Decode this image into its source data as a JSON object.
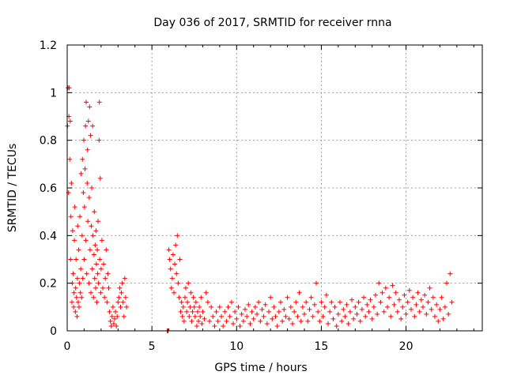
{
  "chart_data": {
    "type": "scatter",
    "title": "Day 036 of 2017, SRMTID for receiver rnna",
    "xlabel": "GPS time / hours",
    "ylabel": "SRMTID / TECUs",
    "xlim": [
      0,
      24.5
    ],
    "ylim": [
      0,
      1.2
    ],
    "x_ticks": [
      0,
      5,
      10,
      15,
      20
    ],
    "x_tick_labels": [
      "0",
      "5",
      "10",
      "15",
      "20"
    ],
    "y_ticks": [
      0,
      0.2,
      0.4,
      0.6,
      0.8,
      1.0,
      1.2
    ],
    "y_tick_labels": [
      "0",
      "0.2",
      "0.4",
      "0.6",
      "0.8",
      "1",
      "1.2"
    ],
    "grid": true,
    "marker": "plus",
    "color": "#ff0000",
    "series": [
      {
        "name": "SRMTID",
        "points": [
          [
            0.02,
            0.86
          ],
          [
            0.05,
            1.02
          ],
          [
            0.08,
            0.58
          ],
          [
            0.1,
            0.9
          ],
          [
            0.12,
            1.02
          ],
          [
            0.15,
            0.72
          ],
          [
            0.18,
            0.88
          ],
          [
            0.2,
            0.3
          ],
          [
            0.22,
            0.48
          ],
          [
            0.25,
            0.62
          ],
          [
            0.28,
            0.12
          ],
          [
            0.3,
            0.2
          ],
          [
            0.32,
            0.42
          ],
          [
            0.35,
            0.24
          ],
          [
            0.38,
            0.1
          ],
          [
            0.4,
            0.16
          ],
          [
            0.42,
            0.38
          ],
          [
            0.45,
            0.52
          ],
          [
            0.48,
            0.08
          ],
          [
            0.5,
            0.18
          ],
          [
            0.52,
            0.3
          ],
          [
            0.55,
            0.14
          ],
          [
            0.58,
            0.06
          ],
          [
            0.6,
            0.22
          ],
          [
            0.62,
            0.44
          ],
          [
            0.65,
            0.12
          ],
          [
            0.68,
            0.34
          ],
          [
            0.7,
            0.1
          ],
          [
            0.72,
            0.2
          ],
          [
            0.75,
            0.48
          ],
          [
            0.78,
            0.16
          ],
          [
            0.8,
            0.26
          ],
          [
            0.82,
            0.66
          ],
          [
            0.85,
            0.14
          ],
          [
            0.88,
            0.4
          ],
          [
            0.9,
            0.72
          ],
          [
            0.92,
            0.22
          ],
          [
            0.95,
            0.58
          ],
          [
            0.98,
            0.8
          ],
          [
            1.0,
            0.3
          ],
          [
            1.02,
            0.52
          ],
          [
            1.05,
            0.68
          ],
          [
            1.08,
            0.86
          ],
          [
            1.1,
            0.38
          ],
          [
            1.12,
            0.96
          ],
          [
            1.15,
            0.24
          ],
          [
            1.18,
            0.62
          ],
          [
            1.2,
            0.76
          ],
          [
            1.22,
            0.46
          ],
          [
            1.25,
            0.88
          ],
          [
            1.28,
            0.2
          ],
          [
            1.3,
            0.56
          ],
          [
            1.32,
            0.94
          ],
          [
            1.35,
            0.34
          ],
          [
            1.38,
            0.82
          ],
          [
            1.4,
            0.16
          ],
          [
            1.42,
            0.44
          ],
          [
            1.45,
            0.6
          ],
          [
            1.48,
            0.26
          ],
          [
            1.5,
            0.86
          ],
          [
            1.52,
            0.4
          ],
          [
            1.55,
            0.14
          ],
          [
            1.58,
            0.32
          ],
          [
            1.6,
            0.5
          ],
          [
            1.62,
            0.22
          ],
          [
            1.65,
            0.36
          ],
          [
            1.68,
            0.18
          ],
          [
            1.7,
            0.42
          ],
          [
            1.72,
            0.28
          ],
          [
            1.75,
            0.12
          ],
          [
            1.78,
            0.34
          ],
          [
            1.8,
            0.24
          ],
          [
            1.82,
            0.46
          ],
          [
            1.85,
            0.2
          ],
          [
            1.88,
            0.8
          ],
          [
            1.9,
            0.96
          ],
          [
            1.92,
            0.3
          ],
          [
            1.95,
            0.64
          ],
          [
            1.98,
            0.16
          ],
          [
            2.0,
            0.26
          ],
          [
            2.05,
            0.38
          ],
          [
            2.1,
            0.18
          ],
          [
            2.15,
            0.28
          ],
          [
            2.2,
            0.14
          ],
          [
            2.25,
            0.22
          ],
          [
            2.3,
            0.34
          ],
          [
            2.35,
            0.12
          ],
          [
            2.4,
            0.24
          ],
          [
            2.45,
            0.18
          ],
          [
            2.5,
            0.08
          ],
          [
            2.55,
            0.04
          ],
          [
            2.6,
            0.02
          ],
          [
            2.65,
            0.06
          ],
          [
            2.7,
            0.1
          ],
          [
            2.75,
            0.03
          ],
          [
            2.8,
            0.05
          ],
          [
            2.85,
            0.08
          ],
          [
            2.9,
            0.02
          ],
          [
            2.95,
            0.06
          ],
          [
            3.0,
            0.12
          ],
          [
            3.05,
            0.14
          ],
          [
            3.1,
            0.18
          ],
          [
            3.15,
            0.1
          ],
          [
            3.2,
            0.16
          ],
          [
            3.25,
            0.2
          ],
          [
            3.3,
            0.12
          ],
          [
            3.35,
            0.06
          ],
          [
            3.4,
            0.22
          ],
          [
            3.45,
            0.14
          ],
          [
            3.5,
            0.1
          ],
          [
            5.9,
            0.0
          ],
          [
            5.95,
            0.0
          ],
          [
            6.0,
            0.34
          ],
          [
            6.05,
            0.3
          ],
          [
            6.1,
            0.26
          ],
          [
            6.15,
            0.18
          ],
          [
            6.2,
            0.22
          ],
          [
            6.25,
            0.32
          ],
          [
            6.3,
            0.16
          ],
          [
            6.35,
            0.28
          ],
          [
            6.4,
            0.36
          ],
          [
            6.45,
            0.24
          ],
          [
            6.5,
            0.4
          ],
          [
            6.55,
            0.2
          ],
          [
            6.6,
            0.14
          ],
          [
            6.65,
            0.3
          ],
          [
            6.7,
            0.08
          ],
          [
            6.75,
            0.12
          ],
          [
            6.8,
            0.06
          ],
          [
            6.85,
            0.1
          ],
          [
            6.9,
            0.04
          ],
          [
            6.95,
            0.14
          ],
          [
            7.0,
            0.18
          ],
          [
            7.05,
            0.08
          ],
          [
            7.1,
            0.12
          ],
          [
            7.15,
            0.2
          ],
          [
            7.2,
            0.06
          ],
          [
            7.25,
            0.1
          ],
          [
            7.3,
            0.16
          ],
          [
            7.35,
            0.04
          ],
          [
            7.4,
            0.08
          ],
          [
            7.45,
            0.14
          ],
          [
            7.5,
            0.1
          ],
          [
            7.55,
            0.06
          ],
          [
            7.6,
            0.12
          ],
          [
            7.65,
            0.02
          ],
          [
            7.7,
            0.08
          ],
          [
            7.75,
            0.04
          ],
          [
            7.8,
            0.1
          ],
          [
            7.85,
            0.06
          ],
          [
            7.9,
            0.14
          ],
          [
            7.95,
            0.03
          ],
          [
            8.0,
            0.08
          ],
          [
            8.1,
            0.05
          ],
          [
            8.2,
            0.16
          ],
          [
            8.3,
            0.12
          ],
          [
            8.4,
            0.04
          ],
          [
            8.5,
            0.1
          ],
          [
            8.6,
            0.06
          ],
          [
            8.7,
            0.02
          ],
          [
            8.8,
            0.08
          ],
          [
            8.9,
            0.04
          ],
          [
            9.0,
            0.1
          ],
          [
            9.1,
            0.06
          ],
          [
            9.2,
            0.02
          ],
          [
            9.3,
            0.08
          ],
          [
            9.4,
            0.04
          ],
          [
            9.5,
            0.1
          ],
          [
            9.6,
            0.06
          ],
          [
            9.7,
            0.12
          ],
          [
            9.8,
            0.03
          ],
          [
            9.9,
            0.08
          ],
          [
            10.0,
            0.05
          ],
          [
            10.1,
            0.1
          ],
          [
            10.2,
            0.02
          ],
          [
            10.3,
            0.07
          ],
          [
            10.4,
            0.04
          ],
          [
            10.5,
            0.09
          ],
          [
            10.6,
            0.06
          ],
          [
            10.7,
            0.11
          ],
          [
            10.8,
            0.03
          ],
          [
            10.9,
            0.08
          ],
          [
            11.0,
            0.05
          ],
          [
            11.1,
            0.1
          ],
          [
            11.2,
            0.07
          ],
          [
            11.3,
            0.12
          ],
          [
            11.4,
            0.04
          ],
          [
            11.5,
            0.09
          ],
          [
            11.6,
            0.06
          ],
          [
            11.7,
            0.11
          ],
          [
            11.8,
            0.03
          ],
          [
            11.9,
            0.08
          ],
          [
            12.0,
            0.14
          ],
          [
            12.1,
            0.05
          ],
          [
            12.2,
            0.1
          ],
          [
            12.3,
            0.06
          ],
          [
            12.4,
            0.02
          ],
          [
            12.5,
            0.08
          ],
          [
            12.6,
            0.12
          ],
          [
            12.7,
            0.04
          ],
          [
            12.8,
            0.09
          ],
          [
            12.9,
            0.06
          ],
          [
            13.0,
            0.14
          ],
          [
            13.1,
            0.05
          ],
          [
            13.2,
            0.1
          ],
          [
            13.3,
            0.03
          ],
          [
            13.4,
            0.08
          ],
          [
            13.5,
            0.12
          ],
          [
            13.6,
            0.06
          ],
          [
            13.7,
            0.16
          ],
          [
            13.8,
            0.04
          ],
          [
            13.9,
            0.1
          ],
          [
            14.0,
            0.07
          ],
          [
            14.1,
            0.12
          ],
          [
            14.2,
            0.04
          ],
          [
            14.3,
            0.09
          ],
          [
            14.4,
            0.14
          ],
          [
            14.5,
            0.06
          ],
          [
            14.6,
            0.11
          ],
          [
            14.7,
            0.2
          ],
          [
            14.8,
            0.08
          ],
          [
            14.9,
            0.04
          ],
          [
            15.0,
            0.12
          ],
          [
            15.1,
            0.06
          ],
          [
            15.2,
            0.1
          ],
          [
            15.3,
            0.15
          ],
          [
            15.4,
            0.03
          ],
          [
            15.5,
            0.08
          ],
          [
            15.6,
            0.12
          ],
          [
            15.7,
            0.05
          ],
          [
            15.8,
            0.1
          ],
          [
            15.9,
            0.02
          ],
          [
            16.0,
            0.07
          ],
          [
            16.1,
            0.12
          ],
          [
            16.2,
            0.04
          ],
          [
            16.3,
            0.09
          ],
          [
            16.4,
            0.06
          ],
          [
            16.5,
            0.11
          ],
          [
            16.6,
            0.03
          ],
          [
            16.7,
            0.08
          ],
          [
            16.8,
            0.13
          ],
          [
            16.9,
            0.05
          ],
          [
            17.0,
            0.1
          ],
          [
            17.1,
            0.07
          ],
          [
            17.2,
            0.12
          ],
          [
            17.3,
            0.04
          ],
          [
            17.4,
            0.09
          ],
          [
            17.5,
            0.14
          ],
          [
            17.6,
            0.06
          ],
          [
            17.7,
            0.11
          ],
          [
            17.8,
            0.08
          ],
          [
            17.9,
            0.13
          ],
          [
            18.0,
            0.05
          ],
          [
            18.1,
            0.1
          ],
          [
            18.2,
            0.15
          ],
          [
            18.3,
            0.07
          ],
          [
            18.4,
            0.2
          ],
          [
            18.5,
            0.12
          ],
          [
            18.6,
            0.16
          ],
          [
            18.7,
            0.08
          ],
          [
            18.8,
            0.18
          ],
          [
            18.9,
            0.1
          ],
          [
            19.0,
            0.14
          ],
          [
            19.1,
            0.06
          ],
          [
            19.2,
            0.19
          ],
          [
            19.3,
            0.11
          ],
          [
            19.4,
            0.16
          ],
          [
            19.5,
            0.08
          ],
          [
            19.6,
            0.13
          ],
          [
            19.7,
            0.05
          ],
          [
            19.8,
            0.1
          ],
          [
            19.9,
            0.15
          ],
          [
            20.0,
            0.07
          ],
          [
            20.1,
            0.12
          ],
          [
            20.2,
            0.17
          ],
          [
            20.3,
            0.09
          ],
          [
            20.4,
            0.14
          ],
          [
            20.5,
            0.06
          ],
          [
            20.6,
            0.11
          ],
          [
            20.7,
            0.16
          ],
          [
            20.8,
            0.08
          ],
          [
            20.9,
            0.13
          ],
          [
            21.0,
            0.1
          ],
          [
            21.1,
            0.15
          ],
          [
            21.2,
            0.07
          ],
          [
            21.3,
            0.12
          ],
          [
            21.4,
            0.18
          ],
          [
            21.5,
            0.09
          ],
          [
            21.6,
            0.14
          ],
          [
            21.7,
            0.06
          ],
          [
            21.8,
            0.11
          ],
          [
            21.9,
            0.04
          ],
          [
            22.0,
            0.09
          ],
          [
            22.1,
            0.14
          ],
          [
            22.2,
            0.05
          ],
          [
            22.3,
            0.1
          ],
          [
            22.4,
            0.2
          ],
          [
            22.5,
            0.07
          ],
          [
            22.6,
            0.24
          ],
          [
            22.7,
            0.12
          ]
        ]
      }
    ]
  }
}
